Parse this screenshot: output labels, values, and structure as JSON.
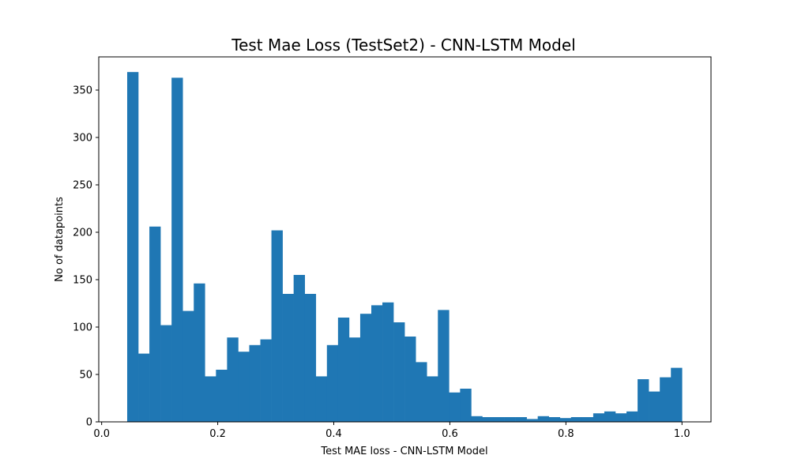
{
  "chart_data": {
    "type": "bar",
    "title": "Test Mae Loss (TestSet2) - CNN-LSTM Model",
    "xlabel": "Test MAE loss - CNN-LSTM Model",
    "ylabel": "No of datapoints",
    "xlim": [
      -0.005,
      1.05
    ],
    "ylim": [
      0,
      385
    ],
    "xticks": [
      0.0,
      0.2,
      0.4,
      0.6,
      0.8,
      1.0
    ],
    "xtick_labels": [
      "0.0",
      "0.2",
      "0.4",
      "0.6",
      "0.8",
      "1.0"
    ],
    "yticks": [
      0,
      50,
      100,
      150,
      200,
      250,
      300,
      350
    ],
    "ytick_labels": [
      "0",
      "50",
      "100",
      "150",
      "200",
      "250",
      "300",
      "350"
    ],
    "bin_start": 0.044,
    "bin_end": 1.0,
    "color": "#1f77b4",
    "grid": false,
    "values": [
      369,
      72,
      206,
      102,
      363,
      117,
      146,
      48,
      55,
      89,
      74,
      81,
      87,
      202,
      135,
      155,
      135,
      48,
      81,
      110,
      89,
      114,
      123,
      126,
      105,
      90,
      63,
      48,
      118,
      31,
      35,
      6,
      5,
      5,
      5,
      5,
      3,
      6,
      5,
      4,
      5,
      5,
      9,
      11,
      9,
      11,
      45,
      32,
      47,
      57
    ]
  }
}
